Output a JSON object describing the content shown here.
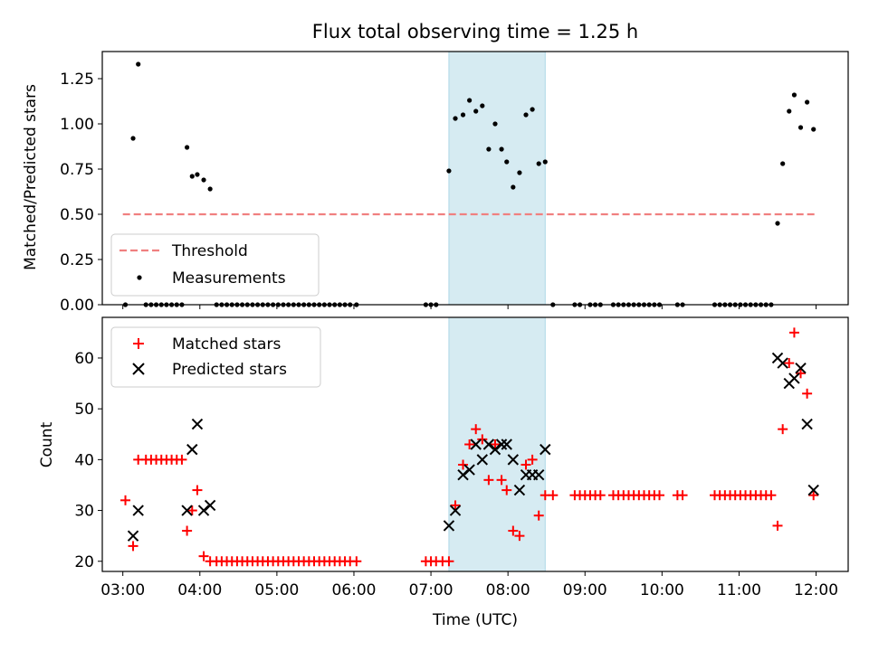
{
  "chart_data": [
    {
      "type": "scatter",
      "title": "Flux total observing time = 1.25 h",
      "xlabel": "",
      "ylabel": "Matched/Predicted stars",
      "xlim": [
        "02:44",
        "12:25"
      ],
      "ylim": [
        0,
        1.4
      ],
      "yticks": [
        0.0,
        0.25,
        0.5,
        0.75,
        1.0,
        1.25
      ],
      "ytick_labels": [
        "0.00",
        "0.25",
        "0.50",
        "0.75",
        "1.00",
        "1.25"
      ],
      "xticks": [
        "03:00",
        "04:00",
        "05:00",
        "06:00",
        "07:00",
        "08:00",
        "09:00",
        "10:00",
        "11:00",
        "12:00"
      ],
      "show_xtick_labels": false,
      "grid": false,
      "legend_position": "lower-left",
      "shaded_span": {
        "x0": "07:14",
        "x1": "08:29",
        "color": "#add8e6"
      },
      "threshold": {
        "name": "Threshold",
        "y": 0.5,
        "x0": "03:00",
        "x1": "12:00",
        "color": "#f08080"
      },
      "series": [
        {
          "name": "Measurements",
          "color": "#000000",
          "points": [
            [
              "03:02",
              0
            ],
            [
              "03:08",
              0.92
            ],
            [
              "03:12",
              1.33
            ],
            [
              "03:18",
              0
            ],
            [
              "03:22",
              0
            ],
            [
              "03:26",
              0
            ],
            [
              "03:30",
              0
            ],
            [
              "03:34",
              0
            ],
            [
              "03:38",
              0
            ],
            [
              "03:42",
              0
            ],
            [
              "03:46",
              0
            ],
            [
              "03:50",
              0.87
            ],
            [
              "03:54",
              0.71
            ],
            [
              "03:58",
              0.72
            ],
            [
              "04:03",
              0.69
            ],
            [
              "04:08",
              0.64
            ],
            [
              "04:13",
              0
            ],
            [
              "04:17",
              0
            ],
            [
              "04:21",
              0
            ],
            [
              "04:25",
              0
            ],
            [
              "04:29",
              0
            ],
            [
              "04:33",
              0
            ],
            [
              "04:37",
              0
            ],
            [
              "04:41",
              0
            ],
            [
              "04:45",
              0
            ],
            [
              "04:49",
              0
            ],
            [
              "04:53",
              0
            ],
            [
              "04:57",
              0
            ],
            [
              "05:01",
              0
            ],
            [
              "05:05",
              0
            ],
            [
              "05:09",
              0
            ],
            [
              "05:13",
              0
            ],
            [
              "05:17",
              0
            ],
            [
              "05:21",
              0
            ],
            [
              "05:25",
              0
            ],
            [
              "05:29",
              0
            ],
            [
              "05:33",
              0
            ],
            [
              "05:37",
              0
            ],
            [
              "05:41",
              0
            ],
            [
              "05:45",
              0
            ],
            [
              "05:49",
              0
            ],
            [
              "05:53",
              0
            ],
            [
              "05:57",
              0
            ],
            [
              "06:02",
              0
            ],
            [
              "06:56",
              0
            ],
            [
              "07:00",
              0
            ],
            [
              "07:04",
              0
            ],
            [
              "07:14",
              0.74
            ],
            [
              "07:19",
              1.03
            ],
            [
              "07:25",
              1.05
            ],
            [
              "07:30",
              1.13
            ],
            [
              "07:35",
              1.07
            ],
            [
              "07:40",
              1.1
            ],
            [
              "07:45",
              0.86
            ],
            [
              "07:50",
              1.0
            ],
            [
              "07:55",
              0.86
            ],
            [
              "07:59",
              0.79
            ],
            [
              "08:04",
              0.65
            ],
            [
              "08:09",
              0.73
            ],
            [
              "08:14",
              1.05
            ],
            [
              "08:19",
              1.08
            ],
            [
              "08:24",
              0.78
            ],
            [
              "08:29",
              0.79
            ],
            [
              "08:35",
              0
            ],
            [
              "08:52",
              0
            ],
            [
              "08:56",
              0
            ],
            [
              "09:04",
              0
            ],
            [
              "09:08",
              0
            ],
            [
              "09:12",
              0
            ],
            [
              "09:22",
              0
            ],
            [
              "09:26",
              0
            ],
            [
              "09:30",
              0
            ],
            [
              "09:34",
              0
            ],
            [
              "09:38",
              0
            ],
            [
              "09:42",
              0
            ],
            [
              "09:46",
              0
            ],
            [
              "09:50",
              0
            ],
            [
              "09:54",
              0
            ],
            [
              "09:58",
              0
            ],
            [
              "10:12",
              0
            ],
            [
              "10:16",
              0
            ],
            [
              "10:41",
              0
            ],
            [
              "10:45",
              0
            ],
            [
              "10:49",
              0
            ],
            [
              "10:53",
              0
            ],
            [
              "10:57",
              0
            ],
            [
              "11:01",
              0
            ],
            [
              "11:05",
              0
            ],
            [
              "11:09",
              0
            ],
            [
              "11:13",
              0
            ],
            [
              "11:17",
              0
            ],
            [
              "11:21",
              0
            ],
            [
              "11:25",
              0
            ],
            [
              "11:30",
              0.45
            ],
            [
              "11:34",
              0.78
            ],
            [
              "11:39",
              1.07
            ],
            [
              "11:43",
              1.16
            ],
            [
              "11:48",
              0.98
            ],
            [
              "11:53",
              1.12
            ],
            [
              "11:58",
              0.97
            ]
          ]
        }
      ]
    },
    {
      "type": "scatter",
      "title": "",
      "xlabel": "Time (UTC)",
      "ylabel": "Count",
      "xlim": [
        "02:44",
        "12:25"
      ],
      "ylim": [
        18,
        68
      ],
      "yticks": [
        20,
        30,
        40,
        50,
        60
      ],
      "xticks": [
        "03:00",
        "04:00",
        "05:00",
        "06:00",
        "07:00",
        "08:00",
        "09:00",
        "10:00",
        "11:00",
        "12:00"
      ],
      "xtick_labels": [
        "03:00",
        "04:00",
        "05:00",
        "06:00",
        "07:00",
        "08:00",
        "09:00",
        "10:00",
        "11:00",
        "12:00"
      ],
      "grid": false,
      "legend_position": "upper-left",
      "shaded_span": {
        "x0": "07:14",
        "x1": "08:29",
        "color": "#add8e6"
      },
      "series": [
        {
          "name": "Matched stars",
          "marker": "plus",
          "color": "#ff0000",
          "points": [
            [
              "03:02",
              32
            ],
            [
              "03:08",
              23
            ],
            [
              "03:12",
              40
            ],
            [
              "03:18",
              40
            ],
            [
              "03:22",
              40
            ],
            [
              "03:26",
              40
            ],
            [
              "03:30",
              40
            ],
            [
              "03:34",
              40
            ],
            [
              "03:38",
              40
            ],
            [
              "03:42",
              40
            ],
            [
              "03:46",
              40
            ],
            [
              "03:50",
              26
            ],
            [
              "03:54",
              30
            ],
            [
              "03:58",
              34
            ],
            [
              "04:03",
              21
            ],
            [
              "04:08",
              20
            ],
            [
              "04:13",
              20
            ],
            [
              "04:17",
              20
            ],
            [
              "04:21",
              20
            ],
            [
              "04:25",
              20
            ],
            [
              "04:29",
              20
            ],
            [
              "04:33",
              20
            ],
            [
              "04:37",
              20
            ],
            [
              "04:41",
              20
            ],
            [
              "04:45",
              20
            ],
            [
              "04:49",
              20
            ],
            [
              "04:53",
              20
            ],
            [
              "04:57",
              20
            ],
            [
              "05:01",
              20
            ],
            [
              "05:05",
              20
            ],
            [
              "05:09",
              20
            ],
            [
              "05:13",
              20
            ],
            [
              "05:17",
              20
            ],
            [
              "05:21",
              20
            ],
            [
              "05:25",
              20
            ],
            [
              "05:29",
              20
            ],
            [
              "05:33",
              20
            ],
            [
              "05:37",
              20
            ],
            [
              "05:41",
              20
            ],
            [
              "05:45",
              20
            ],
            [
              "05:49",
              20
            ],
            [
              "05:53",
              20
            ],
            [
              "05:57",
              20
            ],
            [
              "06:02",
              20
            ],
            [
              "06:56",
              20
            ],
            [
              "07:00",
              20
            ],
            [
              "07:04",
              20
            ],
            [
              "07:09",
              20
            ],
            [
              "07:14",
              20
            ],
            [
              "07:19",
              31
            ],
            [
              "07:25",
              39
            ],
            [
              "07:30",
              43
            ],
            [
              "07:35",
              46
            ],
            [
              "07:40",
              44
            ],
            [
              "07:45",
              36
            ],
            [
              "07:50",
              43
            ],
            [
              "07:55",
              36
            ],
            [
              "07:59",
              34
            ],
            [
              "08:04",
              26
            ],
            [
              "08:09",
              25
            ],
            [
              "08:14",
              39
            ],
            [
              "08:19",
              40
            ],
            [
              "08:24",
              29
            ],
            [
              "08:29",
              33
            ],
            [
              "08:35",
              33
            ],
            [
              "08:52",
              33
            ],
            [
              "08:56",
              33
            ],
            [
              "09:00",
              33
            ],
            [
              "09:04",
              33
            ],
            [
              "09:08",
              33
            ],
            [
              "09:12",
              33
            ],
            [
              "09:22",
              33
            ],
            [
              "09:26",
              33
            ],
            [
              "09:30",
              33
            ],
            [
              "09:34",
              33
            ],
            [
              "09:38",
              33
            ],
            [
              "09:42",
              33
            ],
            [
              "09:46",
              33
            ],
            [
              "09:50",
              33
            ],
            [
              "09:54",
              33
            ],
            [
              "09:58",
              33
            ],
            [
              "10:12",
              33
            ],
            [
              "10:16",
              33
            ],
            [
              "10:41",
              33
            ],
            [
              "10:45",
              33
            ],
            [
              "10:49",
              33
            ],
            [
              "10:53",
              33
            ],
            [
              "10:57",
              33
            ],
            [
              "11:01",
              33
            ],
            [
              "11:05",
              33
            ],
            [
              "11:09",
              33
            ],
            [
              "11:13",
              33
            ],
            [
              "11:17",
              33
            ],
            [
              "11:21",
              33
            ],
            [
              "11:25",
              33
            ],
            [
              "11:30",
              27
            ],
            [
              "11:34",
              46
            ],
            [
              "11:39",
              59
            ],
            [
              "11:43",
              65
            ],
            [
              "11:48",
              57
            ],
            [
              "11:53",
              53
            ],
            [
              "11:58",
              33
            ]
          ]
        },
        {
          "name": "Predicted stars",
          "marker": "x",
          "color": "#000000",
          "points": [
            [
              "03:08",
              25
            ],
            [
              "03:12",
              30
            ],
            [
              "03:50",
              30
            ],
            [
              "03:54",
              42
            ],
            [
              "03:58",
              47
            ],
            [
              "04:03",
              30
            ],
            [
              "04:08",
              31
            ],
            [
              "07:14",
              27
            ],
            [
              "07:19",
              30
            ],
            [
              "07:25",
              37
            ],
            [
              "07:30",
              38
            ],
            [
              "07:35",
              43
            ],
            [
              "07:40",
              40
            ],
            [
              "07:45",
              43
            ],
            [
              "07:50",
              42
            ],
            [
              "07:55",
              43
            ],
            [
              "07:59",
              43
            ],
            [
              "08:04",
              40
            ],
            [
              "08:09",
              34
            ],
            [
              "08:14",
              37
            ],
            [
              "08:19",
              37
            ],
            [
              "08:24",
              37
            ],
            [
              "08:29",
              42
            ],
            [
              "11:30",
              60
            ],
            [
              "11:34",
              59
            ],
            [
              "11:39",
              55
            ],
            [
              "11:43",
              56
            ],
            [
              "11:48",
              58
            ],
            [
              "11:53",
              47
            ],
            [
              "11:58",
              34
            ]
          ]
        }
      ]
    }
  ]
}
